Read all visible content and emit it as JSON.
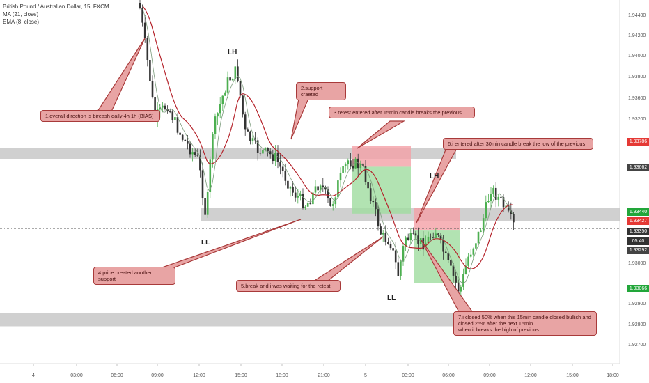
{
  "header": {
    "symbol_line": "British Pound / Australian Dollar, 15, FXCM",
    "ma_label": "MA (21, close)",
    "ema_label": "EMA (8, close)"
  },
  "colors": {
    "up": "#4caf50",
    "down": "#333333",
    "ma": "#b5242c",
    "ema": "#7a9a7a",
    "zone": "#c8c8c8",
    "red_box": "#f4a0a6",
    "green_box": "#9fdc9f"
  },
  "price_axis": {
    "ticks": [
      "1.94400",
      "1.94200",
      "1.94000",
      "1.93800",
      "1.93600",
      "1.93200",
      "1.93000",
      "1.92900",
      "1.92800",
      "1.92700"
    ],
    "badges": [
      {
        "text": "1.93786",
        "kind": "red"
      },
      {
        "text": "1.93662",
        "kind": "dark"
      },
      {
        "text": "1.93440",
        "kind": "green"
      },
      {
        "text": "1.93427",
        "kind": "red"
      },
      {
        "text": "1.93350",
        "kind": "dark"
      },
      {
        "text": "05:40",
        "kind": "dark"
      },
      {
        "text": "1.93292",
        "kind": "dark"
      },
      {
        "text": "1.93066",
        "kind": "green"
      }
    ]
  },
  "time_axis": {
    "ticks": [
      "4",
      "03:00",
      "06:00",
      "09:00",
      "12:00",
      "15:00",
      "18:00",
      "21:00",
      "5",
      "03:00",
      "06:00",
      "09:00",
      "12:00",
      "15:00",
      "18:00"
    ]
  },
  "structure_labels": {
    "lh1": "LH",
    "ll1": "LL",
    "lh2": "LH",
    "ll2": "LL"
  },
  "annotations": {
    "a1": "1.overall direction is bireash daily 4h 1h (BIAS)",
    "a2": "2.support craeted",
    "a3": "3.retest entered after  15min candle breaks the previous.",
    "a4": "4.price created another support",
    "a5": "5.break and i was waiting for the retest",
    "a6": "6.i entered after 30min candle break the low of the previous",
    "a7": "7.i closed 50% when this 15min candle closed bullish and closed 25% after the next 15min\n when it breaks the high of previous"
  },
  "chart_data": {
    "type": "candlestick",
    "title": "British Pound / Australian Dollar, 15, FXCM",
    "indicators": [
      "MA (21, close)",
      "EMA (8, close)"
    ],
    "ylim": [
      1.9265,
      1.9455
    ],
    "zones": [
      {
        "name": "resistance/support zone 1",
        "from": 1.9372,
        "to": 1.9378
      },
      {
        "name": "support zone 2",
        "from": 1.9339,
        "to": 1.9346
      },
      {
        "name": "lower zone",
        "from": 1.9283,
        "to": 1.929
      }
    ],
    "positions": [
      {
        "entry": 1.9368,
        "stop": 1.9379,
        "target": 1.9343
      },
      {
        "entry": 1.9334,
        "stop": 1.9346,
        "target": 1.9306
      }
    ],
    "last_price": 1.9335
  }
}
